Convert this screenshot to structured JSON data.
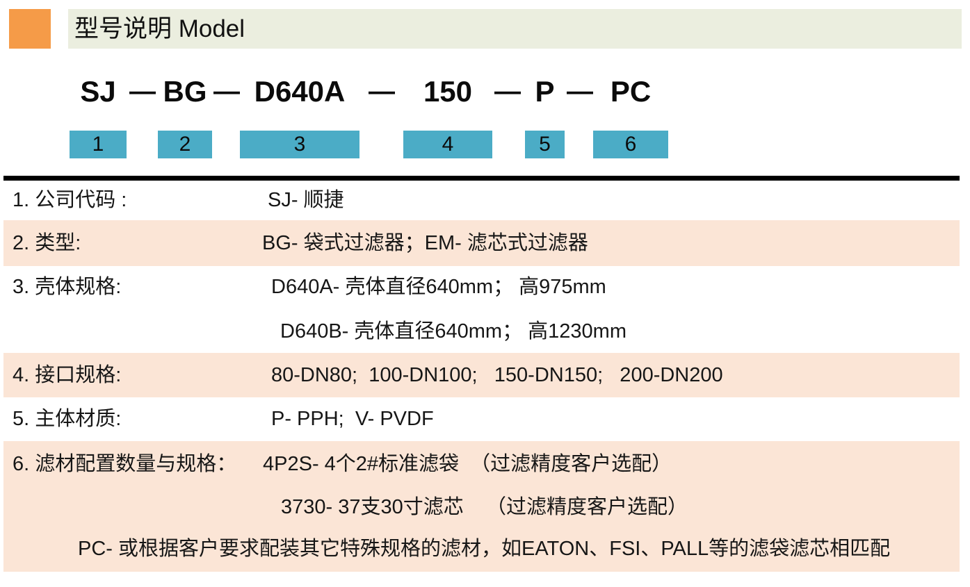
{
  "colors": {
    "accent_orange": "#F59B48",
    "title_band_green": "#EBEEDF",
    "number_box_teal": "#4BACC6",
    "row_shade_peach": "#FBE5D6",
    "divider_black": "#000000"
  },
  "header": {
    "title": "型号说明 Model"
  },
  "model": {
    "separator": "—",
    "segments": [
      {
        "code": "SJ",
        "num": "1"
      },
      {
        "code": "BG",
        "num": "2"
      },
      {
        "code": "D640A",
        "num": "3"
      },
      {
        "code": "150",
        "num": "4"
      },
      {
        "code": "P",
        "num": "5"
      },
      {
        "code": "PC",
        "num": "6"
      }
    ]
  },
  "legend": {
    "rows": [
      {
        "label": "1. 公司代码 :",
        "lines": [
          "SJ- 顺捷"
        ]
      },
      {
        "label": "2. 类型:",
        "lines": [
          "BG- 袋式过滤器；EM- 滤芯式过滤器"
        ]
      },
      {
        "label": "3. 壳体规格:",
        "lines": [
          "D640A- 壳体直径640mm； 高975mm",
          "D640B- 壳体直径640mm； 高1230mm"
        ]
      },
      {
        "label": "4. 接口规格:",
        "lines": [
          "80-DN80;  100-DN100;   150-DN150;   200-DN200"
        ]
      },
      {
        "label": "5. 主体材质:",
        "lines": [
          "P- PPH;  V- PVDF"
        ]
      },
      {
        "label": "6. 滤材配置数量与规格：",
        "lines": [
          "4P2S- 4个2#标准滤袋  （过滤精度客户选配）",
          "3730- 37支30寸滤芯    （过滤精度客户选配）",
          "PC- 或根据客户要求配装其它特殊规格的滤材，如EATON、FSI、PALL等的滤袋滤芯相匹配"
        ]
      }
    ]
  }
}
